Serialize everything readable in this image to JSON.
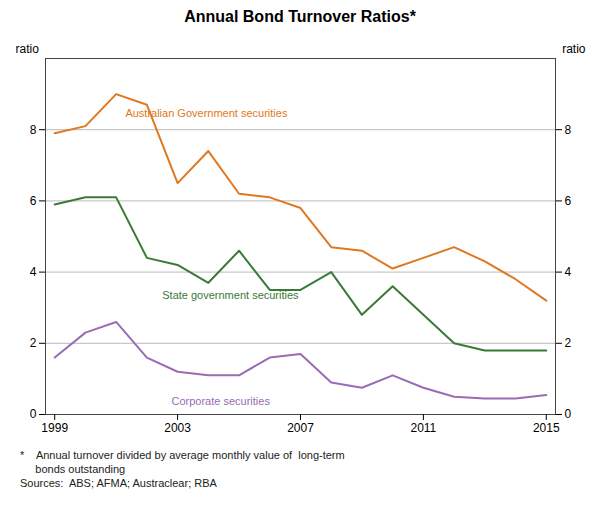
{
  "chart_data": {
    "type": "line",
    "title": "Annual Bond Turnover Ratios*",
    "ylabel": "ratio",
    "y2label": "ratio",
    "x": [
      1999,
      2000,
      2001,
      2002,
      2003,
      2004,
      2005,
      2006,
      2007,
      2008,
      2009,
      2010,
      2011,
      2012,
      2013,
      2014,
      2015
    ],
    "series": [
      {
        "name": "Australian Government securities",
        "color": "#E07820",
        "values": [
          7.9,
          8.1,
          9.0,
          8.7,
          6.5,
          7.4,
          6.2,
          6.1,
          5.8,
          4.7,
          4.6,
          4.1,
          4.4,
          4.7,
          4.3,
          3.8,
          3.2
        ]
      },
      {
        "name": "State government securities",
        "color": "#3A7A35",
        "values": [
          5.9,
          6.1,
          6.1,
          4.4,
          4.2,
          3.7,
          4.6,
          3.5,
          3.5,
          4.0,
          2.8,
          3.6,
          2.8,
          2.0,
          1.8,
          1.8,
          1.8
        ]
      },
      {
        "name": "Corporate securities",
        "color": "#9B6BB5",
        "values": [
          1.6,
          2.3,
          2.6,
          1.6,
          1.2,
          1.1,
          1.1,
          1.6,
          1.7,
          0.9,
          0.75,
          1.1,
          0.75,
          0.5,
          0.45,
          0.45,
          0.55
        ]
      }
    ],
    "annotations": [
      {
        "text": "Australian Government securities",
        "x": 2001.3,
        "y": 8.35,
        "color": "#E07820"
      },
      {
        "text": "State government securities",
        "x": 2002.5,
        "y": 3.25,
        "color": "#3A7A35"
      },
      {
        "text": "Corporate securities",
        "x": 2002.8,
        "y": 0.28,
        "color": "#9B6BB5"
      }
    ],
    "xlim": [
      1998.7,
      2015.3
    ],
    "xticks": [
      1999,
      2003,
      2007,
      2011,
      2015
    ],
    "ylim": [
      0,
      10
    ],
    "yticks": [
      0,
      2,
      4,
      6,
      8
    ],
    "y2lim": [
      0,
      10
    ],
    "y2ticks": [
      0,
      2,
      4,
      6,
      8
    ],
    "grid": true,
    "notes": [
      "*    Annual turnover divided by average monthly value of  long-term",
      "     bonds outstanding",
      "Sources:  ABS; AFMA; Austraclear; RBA"
    ]
  }
}
